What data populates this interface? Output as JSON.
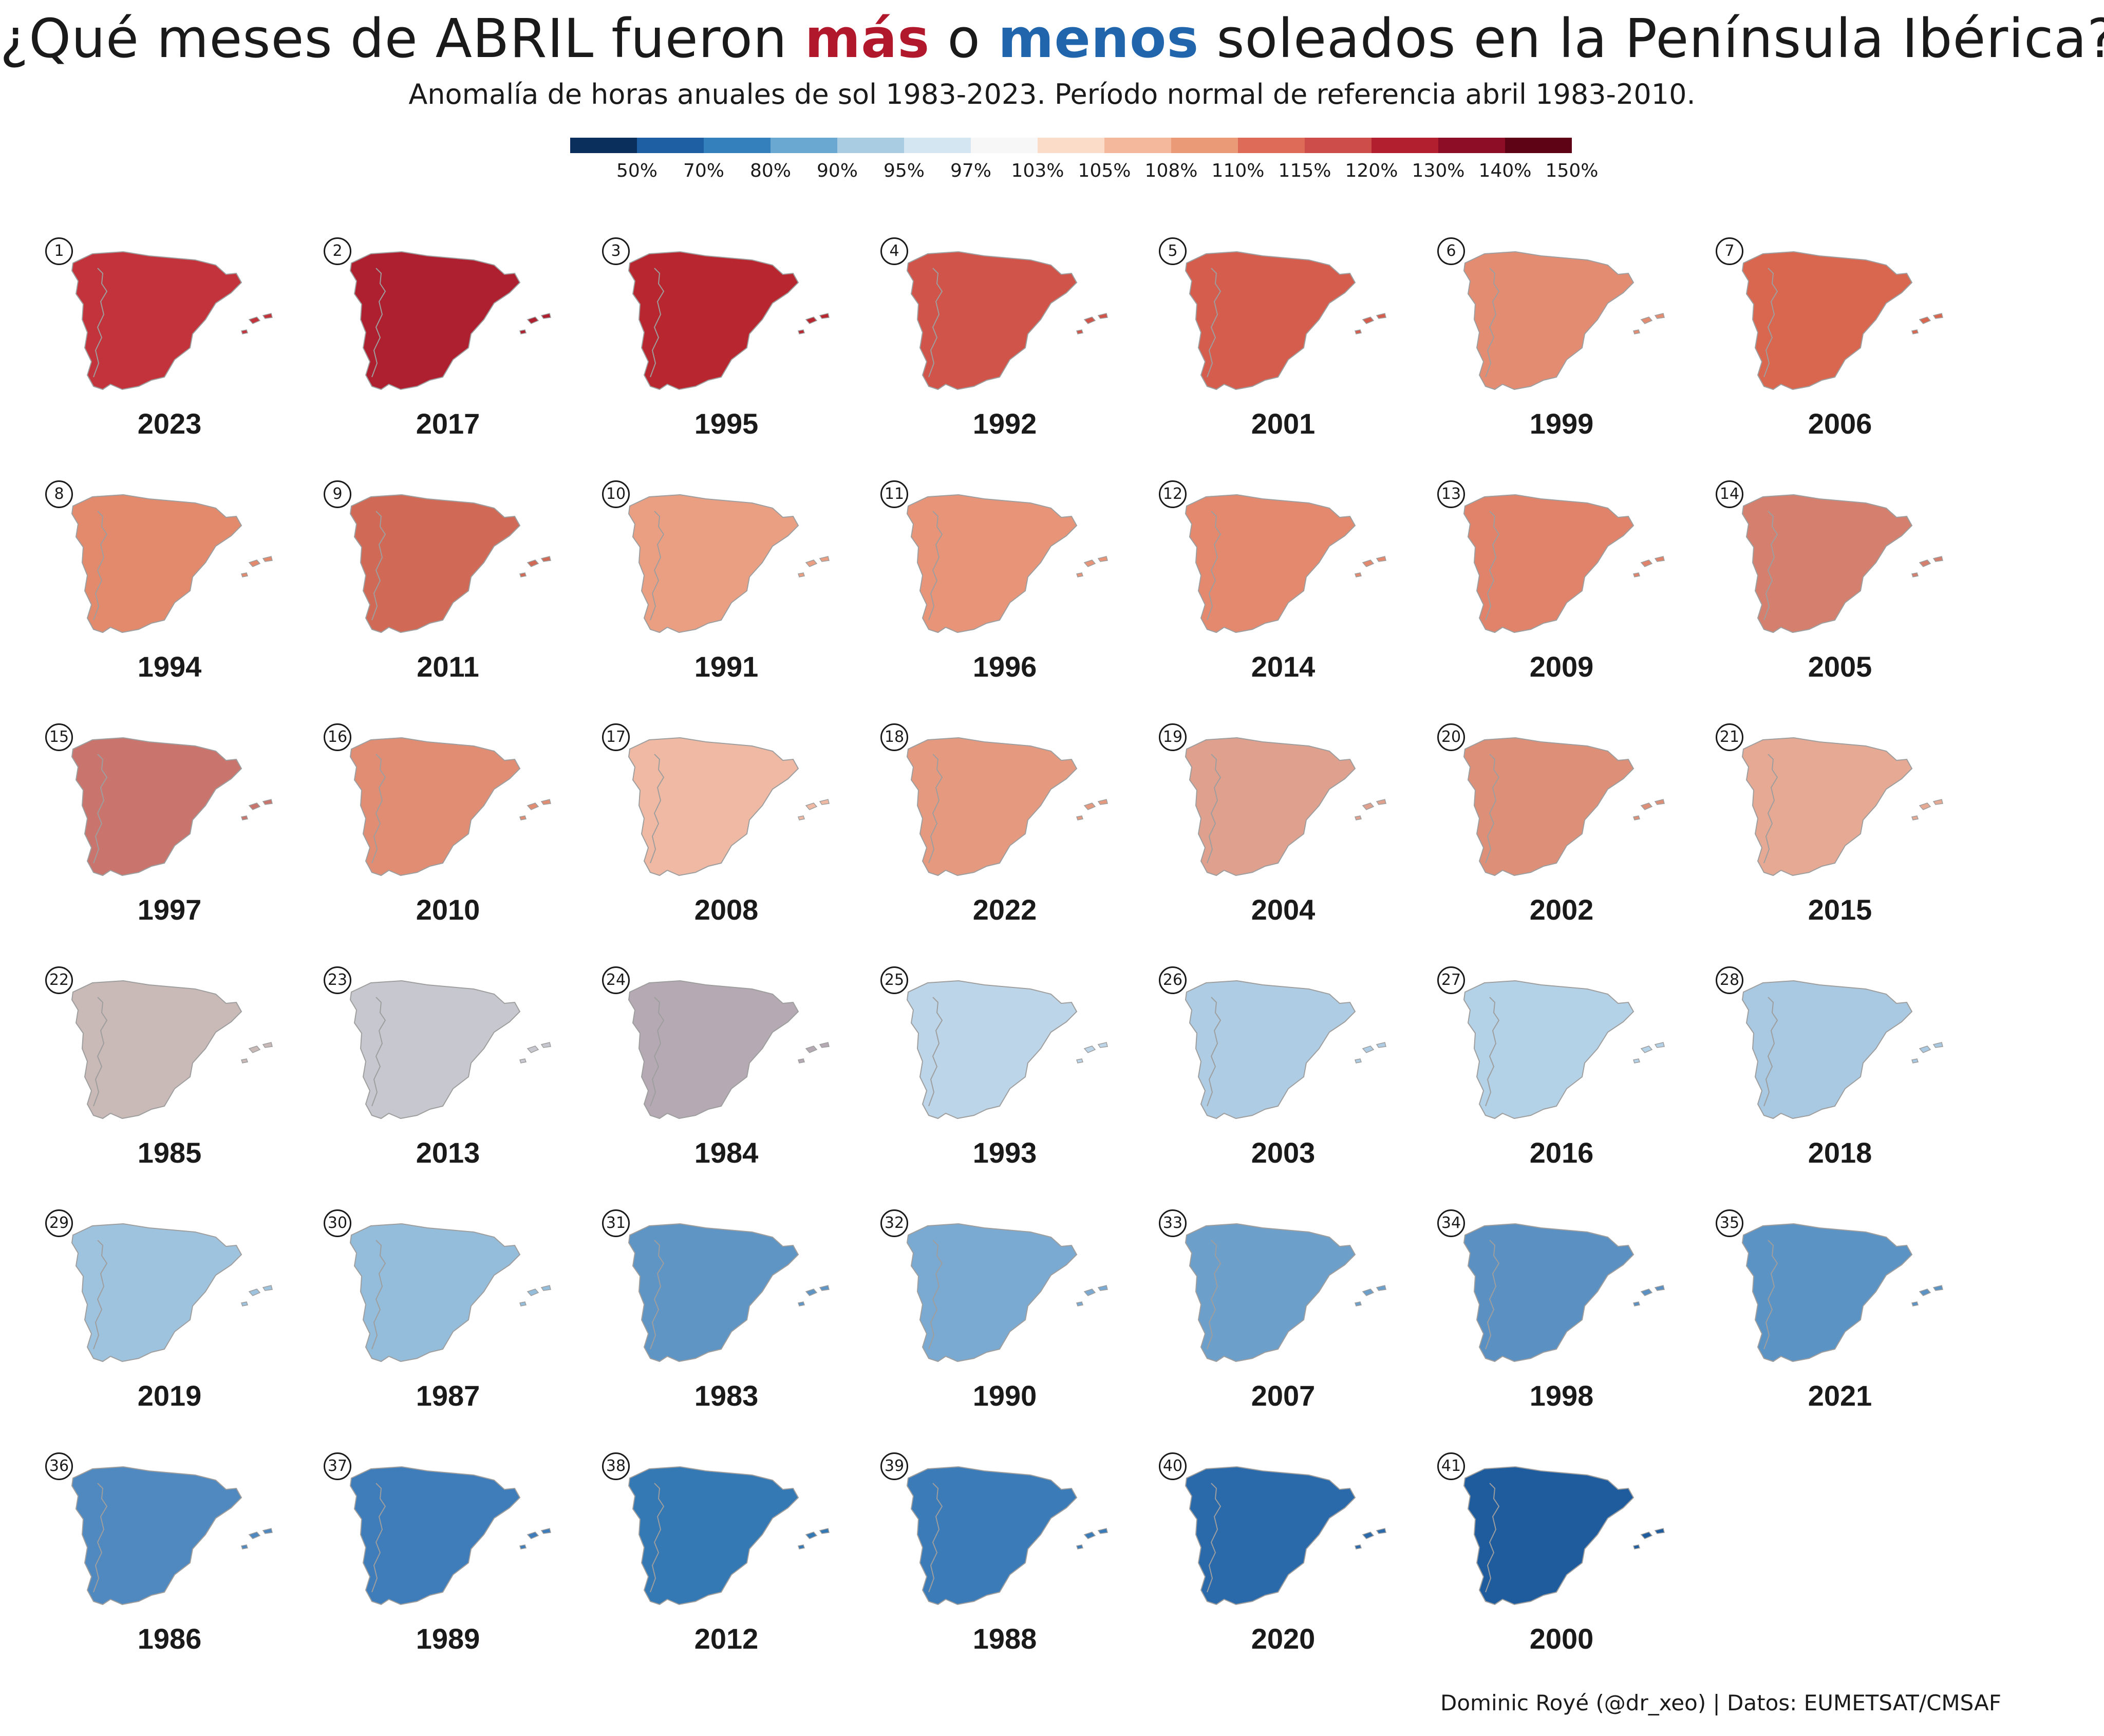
{
  "title": {
    "part1": "¿Qué meses de ABRIL fueron ",
    "more": "más",
    "part2": " o ",
    "less": "menos",
    "part3": " soleados en la Península Ibérica?"
  },
  "subtitle": "Anomalía de horas anuales de sol 1983-2023. Período normal de referencia abril 1983-2010.",
  "colors": {
    "more": "#b2182b",
    "less": "#2166ac",
    "border": "#9e9e9e"
  },
  "legend": {
    "colors": [
      "#0b2f5c",
      "#1e5fa3",
      "#3480bd",
      "#6aa8d1",
      "#a9cce3",
      "#d4e6f1",
      "#f7f7f7",
      "#fbdcc8",
      "#f4b99c",
      "#eb9a78",
      "#dd6b58",
      "#cc4d4a",
      "#b2202f",
      "#8c0d25",
      "#5e0216"
    ],
    "labels": [
      "50%",
      "70%",
      "80%",
      "90%",
      "95%",
      "97%",
      "103%",
      "105%",
      "108%",
      "110%",
      "115%",
      "120%",
      "130%",
      "140%",
      "150%"
    ]
  },
  "panels": [
    {
      "rank": "1",
      "year": "2023",
      "fill": "#c2333c"
    },
    {
      "rank": "2",
      "year": "2017",
      "fill": "#ae1f30"
    },
    {
      "rank": "3",
      "year": "1995",
      "fill": "#b8272f"
    },
    {
      "rank": "4",
      "year": "1992",
      "fill": "#d0544a"
    },
    {
      "rank": "5",
      "year": "2001",
      "fill": "#d45d4e"
    },
    {
      "rank": "6",
      "year": "1999",
      "fill": "#e48c72"
    },
    {
      "rank": "7",
      "year": "2006",
      "fill": "#d9674f"
    },
    {
      "rank": "8",
      "year": "1994",
      "fill": "#e38a6d"
    },
    {
      "rank": "9",
      "year": "2011",
      "fill": "#d06a56"
    },
    {
      "rank": "10",
      "year": "1991",
      "fill": "#eb9f82"
    },
    {
      "rank": "11",
      "year": "1996",
      "fill": "#e79478"
    },
    {
      "rank": "12",
      "year": "2014",
      "fill": "#e4896e"
    },
    {
      "rank": "13",
      "year": "2009",
      "fill": "#e0836a"
    },
    {
      "rank": "14",
      "year": "2005",
      "fill": "#d5806e"
    },
    {
      "rank": "15",
      "year": "1997",
      "fill": "#c9746c"
    },
    {
      "rank": "16",
      "year": "2010",
      "fill": "#e08d74"
    },
    {
      "rank": "17",
      "year": "2008",
      "fill": "#efb9a3"
    },
    {
      "rank": "18",
      "year": "2022",
      "fill": "#e59a80"
    },
    {
      "rank": "19",
      "year": "2004",
      "fill": "#dfa08e"
    },
    {
      "rank": "20",
      "year": "2002",
      "fill": "#dd8f78"
    },
    {
      "rank": "21",
      "year": "2015",
      "fill": "#e6a994"
    },
    {
      "rank": "22",
      "year": "1985",
      "fill": "#c9b9b7"
    },
    {
      "rank": "23",
      "year": "2013",
      "fill": "#c7c7cf"
    },
    {
      "rank": "24",
      "year": "1984",
      "fill": "#b5a9b3"
    },
    {
      "rank": "25",
      "year": "1993",
      "fill": "#bcd5e8"
    },
    {
      "rank": "26",
      "year": "2003",
      "fill": "#aecde4"
    },
    {
      "rank": "27",
      "year": "2016",
      "fill": "#b4d2e7"
    },
    {
      "rank": "28",
      "year": "2018",
      "fill": "#a8c9e1"
    },
    {
      "rank": "29",
      "year": "2019",
      "fill": "#9ec3df"
    },
    {
      "rank": "30",
      "year": "1987",
      "fill": "#94bddb"
    },
    {
      "rank": "31",
      "year": "1983",
      "fill": "#5f95c4"
    },
    {
      "rank": "32",
      "year": "1990",
      "fill": "#7aaad2"
    },
    {
      "rank": "33",
      "year": "2007",
      "fill": "#6d9fcb"
    },
    {
      "rank": "34",
      "year": "1998",
      "fill": "#5a90c2"
    },
    {
      "rank": "35",
      "year": "2021",
      "fill": "#5b93c4"
    },
    {
      "rank": "36",
      "year": "1986",
      "fill": "#4f89bf"
    },
    {
      "rank": "37",
      "year": "1989",
      "fill": "#3e7dba"
    },
    {
      "rank": "38",
      "year": "2012",
      "fill": "#3478b4"
    },
    {
      "rank": "39",
      "year": "1988",
      "fill": "#3b7bb8"
    },
    {
      "rank": "40",
      "year": "2020",
      "fill": "#2a6aab"
    },
    {
      "rank": "41",
      "year": "2000",
      "fill": "#1e5c9e"
    }
  ],
  "credit": "Dominic Royé (@dr_xeo) | Datos: EUMETSAT/CMSAF"
}
